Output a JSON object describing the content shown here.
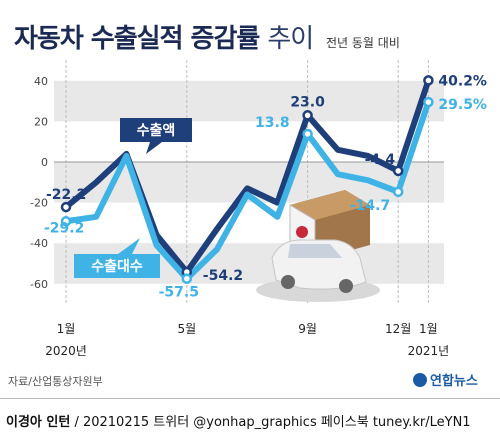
{
  "title_bold": "자동차 수출실적 증감률",
  "title_light": "추이",
  "subtitle": "전년 동월 대비",
  "source": "자료/산업통상자원부",
  "logo_text": "연합뉴스",
  "footer": {
    "author": "이경아 인턴",
    "rest": " / 20210215  트위터 @yonhap_graphics  페이스북 tuney.kr/LeYN1"
  },
  "series_labels": {
    "value": "수출액",
    "count": "수출대수"
  },
  "colors": {
    "value": "#1f3f7a",
    "count": "#3fb3e6",
    "band": "#e8e8e8",
    "title": "#1b2a55"
  },
  "illustration": "car-and-box-with-korean-flag-icon",
  "chart_data": {
    "type": "line",
    "x": [
      "2020-01",
      "2020-02",
      "2020-03",
      "2020-04",
      "2020-05",
      "2020-06",
      "2020-07",
      "2020-08",
      "2020-09",
      "2020-10",
      "2020-11",
      "2020-12",
      "2021-01"
    ],
    "tick_labels": [
      {
        "x": "2020-01",
        "label": "1월",
        "sublabel": "2020년"
      },
      {
        "x": "2020-05",
        "label": "5월",
        "sublabel": ""
      },
      {
        "x": "2020-09",
        "label": "9월",
        "sublabel": ""
      },
      {
        "x": "2020-12",
        "label": "12월",
        "sublabel": ""
      },
      {
        "x": "2021-01",
        "label": "1월",
        "sublabel": "2021년"
      }
    ],
    "series": [
      {
        "name": "수출액",
        "values": [
          -22.2,
          -10,
          4,
          -36,
          -54.2,
          -33,
          -13,
          -20,
          23.0,
          6,
          3,
          -4.4,
          40.2
        ]
      },
      {
        "name": "수출대수",
        "values": [
          -29.2,
          -27,
          3,
          -41,
          -57.5,
          -43,
          -16,
          -27,
          13.8,
          -6,
          -9,
          -14.7,
          29.5
        ]
      }
    ],
    "labels": [
      {
        "series": 0,
        "index": 0,
        "text": "-22.2"
      },
      {
        "series": 1,
        "index": 0,
        "text": "-29.2"
      },
      {
        "series": 0,
        "index": 4,
        "text": "-54.2"
      },
      {
        "series": 1,
        "index": 4,
        "text": "-57.5"
      },
      {
        "series": 0,
        "index": 8,
        "text": "23.0"
      },
      {
        "series": 1,
        "index": 8,
        "text": "13.8"
      },
      {
        "series": 0,
        "index": 11,
        "text": "-4.4"
      },
      {
        "series": 1,
        "index": 11,
        "text": "-14.7"
      },
      {
        "series": 0,
        "index": 12,
        "text": "40.2%"
      },
      {
        "series": 1,
        "index": 12,
        "text": "29.5%"
      }
    ],
    "yticks": [
      40,
      20,
      0,
      -20,
      -40,
      -60
    ],
    "ylim": [
      -65,
      45
    ],
    "grid": true
  }
}
